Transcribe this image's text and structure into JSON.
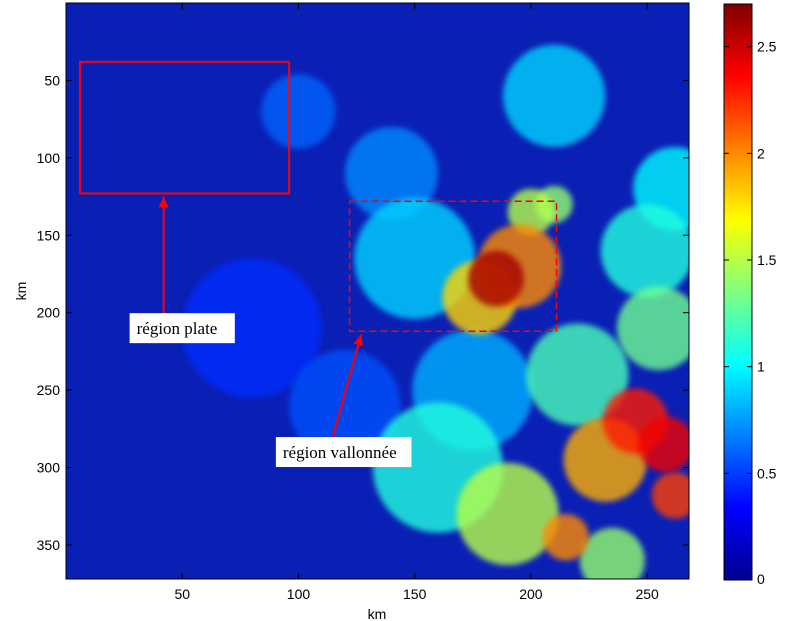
{
  "chart_data": {
    "type": "heatmap",
    "title": "",
    "xlabel": "km",
    "ylabel": "km",
    "xlim": [
      0,
      268
    ],
    "ylim": [
      0,
      372
    ],
    "y_direction": "down",
    "x_ticks": [
      50,
      100,
      150,
      200,
      250
    ],
    "y_ticks": [
      50,
      100,
      150,
      200,
      250,
      300,
      350
    ],
    "colormap": "jet",
    "colorbar": {
      "min": 0,
      "max": 2.7,
      "ticks": [
        0,
        0.5,
        1,
        1.5,
        2,
        2.5
      ],
      "tick_labels": [
        "0",
        "0.5",
        "1",
        "1.5",
        "2",
        "2.5"
      ],
      "placement": "right"
    },
    "regions": [
      {
        "label": "région plate",
        "x_range": [
          6,
          96
        ],
        "y_range": [
          38,
          123
        ],
        "line_style": "solid",
        "color": "#ff0000",
        "label_anchor": [
          50,
          210
        ],
        "arrow_tip": [
          42,
          125
        ]
      },
      {
        "label": "région vallonnée",
        "x_range": [
          122,
          211
        ],
        "y_range": [
          128,
          212
        ],
        "line_style": "dashed",
        "color": "#ff0000",
        "label_anchor": [
          92,
          290
        ],
        "arrow_tip": [
          127,
          214
        ]
      }
    ],
    "hot_spots": [
      {
        "x": 185,
        "y": 178,
        "value": 2.6,
        "radius": 12
      },
      {
        "x": 195,
        "y": 170,
        "value": 2.0,
        "radius": 18
      },
      {
        "x": 178,
        "y": 190,
        "value": 1.8,
        "radius": 16
      },
      {
        "x": 200,
        "y": 135,
        "value": 1.5,
        "radius": 10
      },
      {
        "x": 210,
        "y": 130,
        "value": 1.4,
        "radius": 8
      },
      {
        "x": 245,
        "y": 270,
        "value": 2.3,
        "radius": 14
      },
      {
        "x": 258,
        "y": 285,
        "value": 2.4,
        "radius": 12
      },
      {
        "x": 262,
        "y": 318,
        "value": 2.2,
        "radius": 10
      },
      {
        "x": 232,
        "y": 295,
        "value": 1.9,
        "radius": 18
      },
      {
        "x": 215,
        "y": 345,
        "value": 2.0,
        "radius": 10
      },
      {
        "x": 190,
        "y": 330,
        "value": 1.5,
        "radius": 22
      },
      {
        "x": 160,
        "y": 300,
        "value": 1.1,
        "radius": 28
      },
      {
        "x": 220,
        "y": 240,
        "value": 1.2,
        "radius": 22
      },
      {
        "x": 255,
        "y": 210,
        "value": 1.3,
        "radius": 18
      },
      {
        "x": 250,
        "y": 160,
        "value": 1.1,
        "radius": 20
      },
      {
        "x": 262,
        "y": 120,
        "value": 1.0,
        "radius": 18
      },
      {
        "x": 150,
        "y": 165,
        "value": 0.9,
        "radius": 26
      },
      {
        "x": 140,
        "y": 110,
        "value": 0.7,
        "radius": 20
      },
      {
        "x": 100,
        "y": 70,
        "value": 0.6,
        "radius": 16
      },
      {
        "x": 210,
        "y": 60,
        "value": 0.9,
        "radius": 22
      },
      {
        "x": 175,
        "y": 250,
        "value": 0.8,
        "radius": 26
      },
      {
        "x": 120,
        "y": 260,
        "value": 0.55,
        "radius": 24
      },
      {
        "x": 80,
        "y": 210,
        "value": 0.45,
        "radius": 30
      },
      {
        "x": 235,
        "y": 360,
        "value": 1.4,
        "radius": 14
      }
    ]
  }
}
